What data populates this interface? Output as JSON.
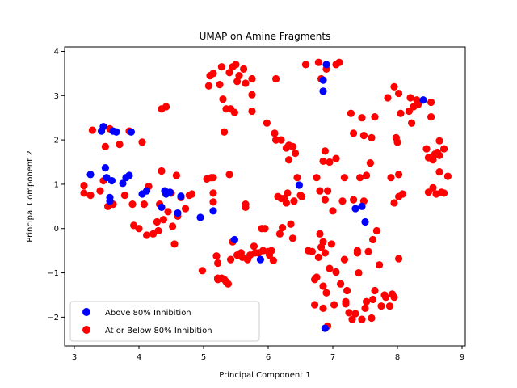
{
  "chart_data": {
    "type": "scatter",
    "title": "UMAP on Amine Fragments",
    "xlabel": "Principal Component 1",
    "ylabel": "Principal Component 2",
    "xlim": [
      2.85,
      9.05
    ],
    "ylim": [
      -2.65,
      4.1
    ],
    "xticks": [
      3,
      4,
      5,
      6,
      7,
      8,
      9
    ],
    "yticks": [
      -2,
      -1,
      0,
      1,
      2,
      3,
      4
    ],
    "grid": false,
    "legend_position": "lower-left",
    "series": [
      {
        "name": "Above 80% Inhibition",
        "color": "#0000ff",
        "points": [
          [
            3.25,
            1.22
          ],
          [
            3.42,
            2.2
          ],
          [
            3.45,
            2.3
          ],
          [
            3.48,
            1.37
          ],
          [
            3.5,
            1.15
          ],
          [
            3.55,
            0.7
          ],
          [
            3.55,
            0.62
          ],
          [
            3.58,
            1.08
          ],
          [
            3.6,
            2.2
          ],
          [
            3.65,
            2.18
          ],
          [
            3.75,
            1.02
          ],
          [
            3.8,
            1.15
          ],
          [
            3.85,
            1.2
          ],
          [
            3.88,
            2.18
          ],
          [
            4.05,
            0.78
          ],
          [
            4.12,
            0.85
          ],
          [
            4.35,
            0.48
          ],
          [
            4.4,
            0.85
          ],
          [
            4.42,
            0.78
          ],
          [
            4.48,
            0.82
          ],
          [
            4.6,
            0.35
          ],
          [
            4.65,
            0.73
          ],
          [
            4.95,
            0.25
          ],
          [
            5.15,
            0.4
          ],
          [
            5.48,
            -0.25
          ],
          [
            5.88,
            -0.7
          ],
          [
            6.48,
            0.98
          ],
          [
            6.85,
            3.35
          ],
          [
            6.85,
            3.1
          ],
          [
            6.88,
            -2.25
          ],
          [
            6.9,
            3.7
          ],
          [
            7.35,
            0.45
          ],
          [
            7.45,
            0.5
          ],
          [
            7.5,
            0.15
          ],
          [
            8.4,
            2.9
          ]
        ]
      },
      {
        "name": "At or Below 80% Inhibition",
        "color": "#ff0000",
        "points": [
          [
            3.15,
            0.97
          ],
          [
            3.15,
            0.8
          ],
          [
            3.25,
            0.75
          ],
          [
            3.28,
            2.22
          ],
          [
            3.4,
            0.85
          ],
          [
            3.45,
            1.08
          ],
          [
            3.45,
            2.3
          ],
          [
            3.48,
            1.85
          ],
          [
            3.52,
            0.5
          ],
          [
            3.55,
            2.25
          ],
          [
            3.6,
            0.55
          ],
          [
            3.7,
            1.9
          ],
          [
            3.78,
            0.75
          ],
          [
            3.85,
            2.2
          ],
          [
            3.9,
            0.55
          ],
          [
            3.92,
            0.07
          ],
          [
            4.0,
            0.0
          ],
          [
            4.05,
            1.95
          ],
          [
            4.08,
            0.55
          ],
          [
            4.12,
            -0.15
          ],
          [
            4.15,
            0.95
          ],
          [
            4.22,
            -0.12
          ],
          [
            4.28,
            0.15
          ],
          [
            4.3,
            -0.05
          ],
          [
            4.32,
            0.55
          ],
          [
            4.35,
            1.3
          ],
          [
            4.35,
            2.7
          ],
          [
            4.38,
            0.2
          ],
          [
            4.42,
            2.75
          ],
          [
            4.45,
            0.38
          ],
          [
            4.5,
            0.8
          ],
          [
            4.52,
            0.05
          ],
          [
            4.55,
            -0.35
          ],
          [
            4.58,
            1.2
          ],
          [
            4.6,
            0.28
          ],
          [
            4.65,
            0.7
          ],
          [
            4.72,
            0.45
          ],
          [
            4.78,
            0.75
          ],
          [
            4.82,
            0.78
          ],
          [
            4.98,
            -0.95
          ],
          [
            5.05,
            1.12
          ],
          [
            5.08,
            3.22
          ],
          [
            5.1,
            3.45
          ],
          [
            5.12,
            1.15
          ],
          [
            5.15,
            3.5
          ],
          [
            5.15,
            0.8
          ],
          [
            5.15,
            0.6
          ],
          [
            5.15,
            1.15
          ],
          [
            5.2,
            -0.62
          ],
          [
            5.22,
            -1.12
          ],
          [
            5.22,
            -0.78
          ],
          [
            5.22,
            -1.15
          ],
          [
            5.25,
            3.25
          ],
          [
            5.28,
            -1.12
          ],
          [
            5.28,
            3.65
          ],
          [
            5.3,
            2.92
          ],
          [
            5.32,
            -1.15
          ],
          [
            5.32,
            2.18
          ],
          [
            5.35,
            -1.2
          ],
          [
            5.35,
            2.7
          ],
          [
            5.38,
            -1.25
          ],
          [
            5.4,
            1.22
          ],
          [
            5.4,
            3.52
          ],
          [
            5.42,
            2.7
          ],
          [
            5.42,
            -0.7
          ],
          [
            5.45,
            -0.3
          ],
          [
            5.45,
            3.65
          ],
          [
            5.48,
            2.62
          ],
          [
            5.5,
            3.7
          ],
          [
            5.52,
            -0.6
          ],
          [
            5.52,
            3.32
          ],
          [
            5.55,
            3.45
          ],
          [
            5.58,
            -0.55
          ],
          [
            5.6,
            -0.65
          ],
          [
            5.62,
            3.6
          ],
          [
            5.65,
            3.28
          ],
          [
            5.65,
            0.55
          ],
          [
            5.65,
            0.48
          ],
          [
            5.68,
            -0.7
          ],
          [
            5.72,
            -0.6
          ],
          [
            5.75,
            3.02
          ],
          [
            5.75,
            3.38
          ],
          [
            5.75,
            2.65
          ],
          [
            5.78,
            -0.4
          ],
          [
            5.8,
            -0.55
          ],
          [
            5.85,
            -0.55
          ],
          [
            5.9,
            0.0
          ],
          [
            5.92,
            -0.5
          ],
          [
            5.95,
            0.0
          ],
          [
            5.98,
            2.38
          ],
          [
            6.0,
            -0.52
          ],
          [
            6.02,
            -0.6
          ],
          [
            6.05,
            -0.5
          ],
          [
            6.08,
            -0.72
          ],
          [
            6.1,
            2.15
          ],
          [
            6.12,
            3.38
          ],
          [
            6.12,
            2.0
          ],
          [
            6.15,
            0.72
          ],
          [
            6.18,
            -0.12
          ],
          [
            6.2,
            0.68
          ],
          [
            6.2,
            2.0
          ],
          [
            6.22,
            0.02
          ],
          [
            6.25,
            0.68
          ],
          [
            6.28,
            1.82
          ],
          [
            6.28,
            0.58
          ],
          [
            6.3,
            0.8
          ],
          [
            6.32,
            1.55
          ],
          [
            6.32,
            1.88
          ],
          [
            6.35,
            0.1
          ],
          [
            6.38,
            1.85
          ],
          [
            6.38,
            -0.22
          ],
          [
            6.4,
            0.62
          ],
          [
            6.42,
            1.7
          ],
          [
            6.45,
            1.15
          ],
          [
            6.5,
            0.75
          ],
          [
            6.52,
            0.72
          ],
          [
            6.58,
            3.7
          ],
          [
            6.62,
            -0.5
          ],
          [
            6.68,
            -0.52
          ],
          [
            6.72,
            -1.72
          ],
          [
            6.72,
            -1.15
          ],
          [
            6.75,
            1.15
          ],
          [
            6.75,
            -1.1
          ],
          [
            6.78,
            3.75
          ],
          [
            6.78,
            -0.65
          ],
          [
            6.8,
            0.85
          ],
          [
            6.8,
            -0.12
          ],
          [
            6.82,
            3.38
          ],
          [
            6.82,
            -0.42
          ],
          [
            6.85,
            -0.3
          ],
          [
            6.85,
            -1.3
          ],
          [
            6.85,
            -1.8
          ],
          [
            6.85,
            1.52
          ],
          [
            6.88,
            -0.55
          ],
          [
            6.88,
            0.65
          ],
          [
            6.88,
            1.75
          ],
          [
            6.9,
            -1.45
          ],
          [
            6.9,
            3.6
          ],
          [
            6.92,
            -2.2
          ],
          [
            6.92,
            0.85
          ],
          [
            6.95,
            -0.9
          ],
          [
            6.95,
            1.5
          ],
          [
            6.98,
            -0.35
          ],
          [
            7.0,
            0.4
          ],
          [
            7.02,
            -1.72
          ],
          [
            7.05,
            -0.98
          ],
          [
            7.05,
            3.7
          ],
          [
            7.05,
            1.58
          ],
          [
            7.1,
            3.75
          ],
          [
            7.12,
            -1.25
          ],
          [
            7.15,
            0.62
          ],
          [
            7.18,
            -0.7
          ],
          [
            7.18,
            1.15
          ],
          [
            7.2,
            -1.65
          ],
          [
            7.2,
            -1.7
          ],
          [
            7.22,
            -1.4
          ],
          [
            7.25,
            -1.9
          ],
          [
            7.28,
            2.6
          ],
          [
            7.3,
            -2.05
          ],
          [
            7.32,
            0.65
          ],
          [
            7.32,
            2.15
          ],
          [
            7.35,
            -1.92
          ],
          [
            7.38,
            -0.5
          ],
          [
            7.38,
            -0.55
          ],
          [
            7.4,
            -1.0
          ],
          [
            7.42,
            1.15
          ],
          [
            7.45,
            2.5
          ],
          [
            7.45,
            -2.05
          ],
          [
            7.48,
            0.62
          ],
          [
            7.48,
            2.1
          ],
          [
            7.5,
            -1.8
          ],
          [
            7.52,
            1.2
          ],
          [
            7.52,
            -1.65
          ],
          [
            7.55,
            -0.52
          ],
          [
            7.58,
            1.48
          ],
          [
            7.6,
            2.05
          ],
          [
            7.6,
            -2.02
          ],
          [
            7.62,
            -0.25
          ],
          [
            7.62,
            -1.6
          ],
          [
            7.65,
            2.52
          ],
          [
            7.65,
            -1.4
          ],
          [
            7.68,
            -0.05
          ],
          [
            7.72,
            -0.82
          ],
          [
            7.75,
            -1.75
          ],
          [
            7.8,
            -1.5
          ],
          [
            7.82,
            -1.55
          ],
          [
            7.85,
            2.95
          ],
          [
            7.88,
            -1.75
          ],
          [
            7.9,
            1.15
          ],
          [
            7.92,
            -1.48
          ],
          [
            7.95,
            0.58
          ],
          [
            7.95,
            -1.55
          ],
          [
            7.95,
            3.2
          ],
          [
            7.98,
            2.05
          ],
          [
            8.0,
            1.95
          ],
          [
            8.02,
            3.05
          ],
          [
            8.02,
            1.22
          ],
          [
            8.02,
            0.72
          ],
          [
            8.02,
            -0.68
          ],
          [
            8.05,
            2.6
          ],
          [
            8.08,
            0.78
          ],
          [
            8.18,
            2.65
          ],
          [
            8.2,
            2.95
          ],
          [
            8.22,
            2.38
          ],
          [
            8.25,
            2.75
          ],
          [
            8.3,
            2.9
          ],
          [
            8.32,
            2.8
          ],
          [
            8.45,
            1.8
          ],
          [
            8.48,
            0.82
          ],
          [
            8.48,
            1.6
          ],
          [
            8.52,
            2.85
          ],
          [
            8.52,
            2.52
          ],
          [
            8.55,
            1.55
          ],
          [
            8.55,
            0.92
          ],
          [
            8.58,
            1.68
          ],
          [
            8.6,
            0.78
          ],
          [
            8.62,
            1.72
          ],
          [
            8.65,
            1.65
          ],
          [
            8.65,
            1.98
          ],
          [
            8.65,
            1.28
          ],
          [
            8.68,
            0.82
          ],
          [
            8.72,
            1.8
          ],
          [
            8.72,
            0.8
          ],
          [
            8.78,
            1.18
          ]
        ]
      }
    ]
  }
}
